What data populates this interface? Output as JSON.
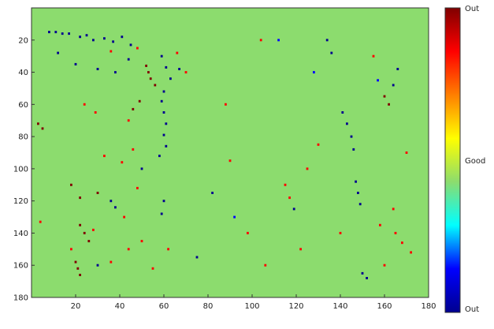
{
  "chart_data": {
    "type": "heatmap",
    "title": "",
    "xlabel": "",
    "ylabel": "",
    "xlim": [
      0,
      180
    ],
    "ylim": [
      0,
      180
    ],
    "y_reversed": true,
    "grid": false,
    "x_ticks": [
      20,
      40,
      60,
      80,
      100,
      120,
      140,
      160,
      180
    ],
    "y_ticks": [
      20,
      40,
      60,
      80,
      100,
      120,
      140,
      160,
      180
    ],
    "x_tick_labels": [
      "20",
      "40",
      "60",
      "80",
      "100",
      "120",
      "140",
      "160",
      "180"
    ],
    "y_tick_labels": [
      "20",
      "40",
      "60",
      "80",
      "100",
      "120",
      "140",
      "160",
      "180"
    ],
    "background_value": 0,
    "background_color": "#8cdc6e",
    "colormap": [
      "#00008f",
      "#0000ff",
      "#00ffff",
      "#8cdc6e",
      "#ffff00",
      "#ff7f00",
      "#ff0000",
      "#800000"
    ],
    "colorbar": {
      "labels": [
        "Out",
        "Good",
        "Out"
      ],
      "label_positions": [
        "top",
        "middle",
        "bottom"
      ],
      "range": [
        -1,
        1
      ]
    },
    "points": [
      {
        "x": 3,
        "y": 72,
        "v": 0.9
      },
      {
        "x": 5,
        "y": 75,
        "v": 0.9
      },
      {
        "x": 4,
        "y": 133,
        "v": 0.6
      },
      {
        "x": 8,
        "y": 15,
        "v": -0.9
      },
      {
        "x": 11,
        "y": 15,
        "v": -0.9
      },
      {
        "x": 14,
        "y": 16,
        "v": -0.9
      },
      {
        "x": 17,
        "y": 16,
        "v": -0.9
      },
      {
        "x": 22,
        "y": 18,
        "v": -0.9
      },
      {
        "x": 25,
        "y": 17,
        "v": -0.9
      },
      {
        "x": 28,
        "y": 20,
        "v": -0.9
      },
      {
        "x": 33,
        "y": 19,
        "v": -0.9
      },
      {
        "x": 37,
        "y": 21,
        "v": -0.9
      },
      {
        "x": 41,
        "y": 18,
        "v": -0.9
      },
      {
        "x": 45,
        "y": 23,
        "v": -0.9
      },
      {
        "x": 12,
        "y": 28,
        "v": -0.9
      },
      {
        "x": 20,
        "y": 35,
        "v": -0.9
      },
      {
        "x": 30,
        "y": 38,
        "v": -0.9
      },
      {
        "x": 38,
        "y": 40,
        "v": -0.9
      },
      {
        "x": 44,
        "y": 32,
        "v": -0.9
      },
      {
        "x": 36,
        "y": 27,
        "v": 0.8
      },
      {
        "x": 48,
        "y": 25,
        "v": 0.6
      },
      {
        "x": 52,
        "y": 36,
        "v": 0.9
      },
      {
        "x": 53,
        "y": 40,
        "v": 0.9
      },
      {
        "x": 54,
        "y": 44,
        "v": 0.9
      },
      {
        "x": 56,
        "y": 48,
        "v": 0.9
      },
      {
        "x": 49,
        "y": 58,
        "v": 0.9
      },
      {
        "x": 46,
        "y": 63,
        "v": 0.9
      },
      {
        "x": 44,
        "y": 70,
        "v": 0.6
      },
      {
        "x": 59,
        "y": 30,
        "v": -0.9
      },
      {
        "x": 61,
        "y": 37,
        "v": -0.9
      },
      {
        "x": 63,
        "y": 44,
        "v": -0.9
      },
      {
        "x": 60,
        "y": 52,
        "v": -0.9
      },
      {
        "x": 59,
        "y": 58,
        "v": -0.9
      },
      {
        "x": 60,
        "y": 65,
        "v": -0.9
      },
      {
        "x": 61,
        "y": 72,
        "v": -0.9
      },
      {
        "x": 60,
        "y": 79,
        "v": -0.9
      },
      {
        "x": 61,
        "y": 86,
        "v": -0.9
      },
      {
        "x": 58,
        "y": 92,
        "v": -0.9
      },
      {
        "x": 67,
        "y": 38,
        "v": -0.9
      },
      {
        "x": 70,
        "y": 40,
        "v": 0.6
      },
      {
        "x": 66,
        "y": 28,
        "v": 0.6
      },
      {
        "x": 24,
        "y": 60,
        "v": 0.6
      },
      {
        "x": 29,
        "y": 65,
        "v": 0.6
      },
      {
        "x": 33,
        "y": 92,
        "v": 0.6
      },
      {
        "x": 41,
        "y": 96,
        "v": 0.8
      },
      {
        "x": 46,
        "y": 88,
        "v": 0.6
      },
      {
        "x": 50,
        "y": 100,
        "v": -0.9
      },
      {
        "x": 18,
        "y": 110,
        "v": 0.9
      },
      {
        "x": 22,
        "y": 118,
        "v": 0.9
      },
      {
        "x": 30,
        "y": 115,
        "v": 0.9
      },
      {
        "x": 36,
        "y": 120,
        "v": -0.9
      },
      {
        "x": 38,
        "y": 124,
        "v": -0.9
      },
      {
        "x": 42,
        "y": 130,
        "v": 0.6
      },
      {
        "x": 48,
        "y": 112,
        "v": 0.6
      },
      {
        "x": 60,
        "y": 120,
        "v": -0.9
      },
      {
        "x": 59,
        "y": 128,
        "v": -0.9
      },
      {
        "x": 22,
        "y": 135,
        "v": 0.9
      },
      {
        "x": 24,
        "y": 140,
        "v": 0.9
      },
      {
        "x": 26,
        "y": 145,
        "v": 0.9
      },
      {
        "x": 28,
        "y": 138,
        "v": 0.6
      },
      {
        "x": 18,
        "y": 150,
        "v": 0.6
      },
      {
        "x": 20,
        "y": 158,
        "v": 0.9
      },
      {
        "x": 21,
        "y": 162,
        "v": 0.9
      },
      {
        "x": 22,
        "y": 166,
        "v": 0.9
      },
      {
        "x": 30,
        "y": 160,
        "v": -0.9
      },
      {
        "x": 36,
        "y": 158,
        "v": 0.6
      },
      {
        "x": 44,
        "y": 150,
        "v": 0.6
      },
      {
        "x": 50,
        "y": 145,
        "v": 0.6
      },
      {
        "x": 55,
        "y": 162,
        "v": 0.6
      },
      {
        "x": 62,
        "y": 150,
        "v": 0.6
      },
      {
        "x": 75,
        "y": 155,
        "v": -0.9
      },
      {
        "x": 82,
        "y": 115,
        "v": -0.9
      },
      {
        "x": 88,
        "y": 60,
        "v": 0.6
      },
      {
        "x": 90,
        "y": 95,
        "v": 0.6
      },
      {
        "x": 92,
        "y": 130,
        "v": -0.6
      },
      {
        "x": 98,
        "y": 140,
        "v": 0.6
      },
      {
        "x": 104,
        "y": 20,
        "v": 0.6
      },
      {
        "x": 106,
        "y": 160,
        "v": 0.6
      },
      {
        "x": 112,
        "y": 20,
        "v": -0.6
      },
      {
        "x": 115,
        "y": 110,
        "v": 0.8
      },
      {
        "x": 117,
        "y": 118,
        "v": 0.8
      },
      {
        "x": 119,
        "y": 125,
        "v": -0.9
      },
      {
        "x": 122,
        "y": 150,
        "v": 0.6
      },
      {
        "x": 125,
        "y": 100,
        "v": 0.6
      },
      {
        "x": 128,
        "y": 40,
        "v": -0.6
      },
      {
        "x": 130,
        "y": 85,
        "v": 0.6
      },
      {
        "x": 134,
        "y": 20,
        "v": -0.9
      },
      {
        "x": 136,
        "y": 28,
        "v": -0.9
      },
      {
        "x": 140,
        "y": 140,
        "v": 0.6
      },
      {
        "x": 141,
        "y": 65,
        "v": -0.9
      },
      {
        "x": 143,
        "y": 72,
        "v": -0.9
      },
      {
        "x": 145,
        "y": 80,
        "v": -0.9
      },
      {
        "x": 146,
        "y": 88,
        "v": -0.9
      },
      {
        "x": 147,
        "y": 108,
        "v": -0.9
      },
      {
        "x": 148,
        "y": 115,
        "v": -0.9
      },
      {
        "x": 149,
        "y": 122,
        "v": -0.9
      },
      {
        "x": 150,
        "y": 165,
        "v": -0.9
      },
      {
        "x": 152,
        "y": 168,
        "v": -0.9
      },
      {
        "x": 155,
        "y": 30,
        "v": 0.6
      },
      {
        "x": 157,
        "y": 45,
        "v": -0.6
      },
      {
        "x": 160,
        "y": 55,
        "v": 0.9
      },
      {
        "x": 162,
        "y": 60,
        "v": 0.9
      },
      {
        "x": 164,
        "y": 48,
        "v": -0.9
      },
      {
        "x": 166,
        "y": 38,
        "v": -0.9
      },
      {
        "x": 170,
        "y": 90,
        "v": 0.6
      },
      {
        "x": 164,
        "y": 125,
        "v": 0.6
      },
      {
        "x": 165,
        "y": 140,
        "v": 0.8
      },
      {
        "x": 168,
        "y": 146,
        "v": 0.8
      },
      {
        "x": 172,
        "y": 152,
        "v": 0.6
      },
      {
        "x": 160,
        "y": 160,
        "v": 0.6
      },
      {
        "x": 158,
        "y": 135,
        "v": 0.6
      }
    ]
  }
}
